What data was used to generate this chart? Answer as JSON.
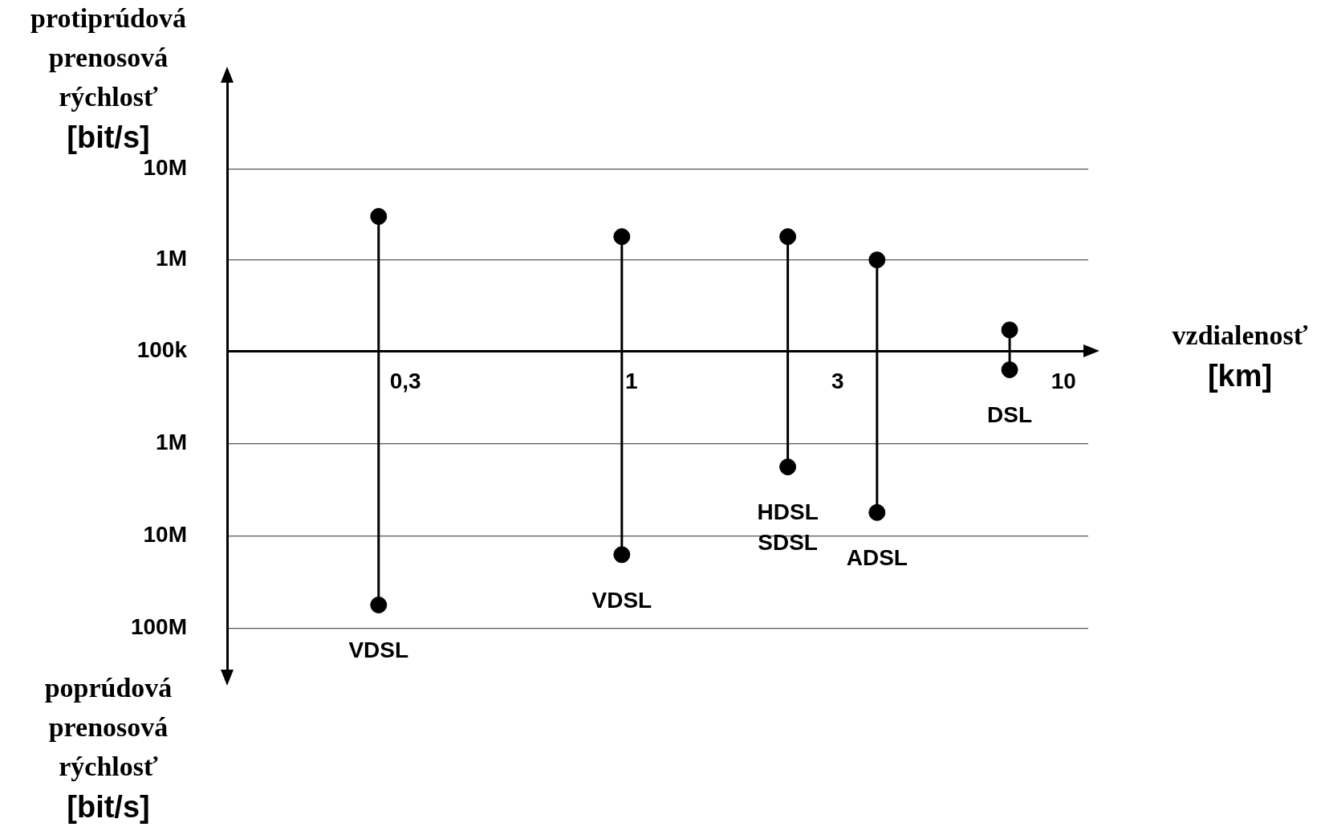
{
  "chart_data": [
    {
      "type": "lollipop",
      "ylabel": "protiprúdová prenosová rýchlosť [bit/s]",
      "xlabel": "vzdialenosť [km]",
      "log": "xy",
      "xlim": [
        0.116,
        11.4
      ],
      "xticks": [
        {
          "value": 0.3,
          "label": "0,3"
        },
        1,
        3,
        10
      ],
      "ylim": [
        100000,
        100000000
      ],
      "yticks": [
        {
          "value": 100000,
          "label": "100k"
        },
        {
          "value": 1000000,
          "label": "1M"
        },
        {
          "value": 10000000,
          "label": "10M"
        }
      ],
      "grid": "y",
      "legend": false,
      "marker": "circle",
      "series": [
        {
          "color": "#000000",
          "x": [
            0.26
          ],
          "values": [
            3000000
          ]
        },
        {
          "color": "#000000",
          "x": [
            0.95
          ],
          "values": [
            1800000
          ]
        },
        {
          "color": "#000000",
          "x": [
            2.3
          ],
          "values": [
            1800000
          ]
        },
        {
          "color": "#000000",
          "x": [
            3.7
          ],
          "values": [
            1000000
          ]
        },
        {
          "color": "#000000",
          "x": [
            7.5
          ],
          "values": [
            170000
          ]
        }
      ]
    },
    {
      "type": "lollipop",
      "ylabel": "poprúdová prenosová rýchlosť [bit/s]",
      "log": "xy",
      "tick_labels": "y",
      "xlim": [
        0.116,
        11.4
      ],
      "ylim": [
        316000000,
        100000
      ],
      "yticks": [
        {
          "value": 1000000,
          "label": "1M"
        },
        {
          "value": 10000000,
          "label": "10M"
        },
        {
          "value": 100000000,
          "label": "100M"
        }
      ],
      "grid": "y",
      "legend": false,
      "marker": "circle",
      "series": [
        {
          "name": "VDSL",
          "color": "#000000",
          "x": [
            0.26
          ],
          "values": [
            56000000
          ]
        },
        {
          "name": "VDSL",
          "color": "#000000",
          "x": [
            0.95
          ],
          "values": [
            16000000
          ]
        },
        {
          "name": "HDSL\nSDSL",
          "color": "#000000",
          "x": [
            2.3
          ],
          "values": [
            1800000
          ]
        },
        {
          "name": "ADSL",
          "color": "#000000",
          "x": [
            3.7
          ],
          "values": [
            5600000
          ]
        },
        {
          "name": "DSL",
          "color": "#000000",
          "x": [
            7.5
          ],
          "values": [
            160000
          ]
        }
      ]
    }
  ]
}
